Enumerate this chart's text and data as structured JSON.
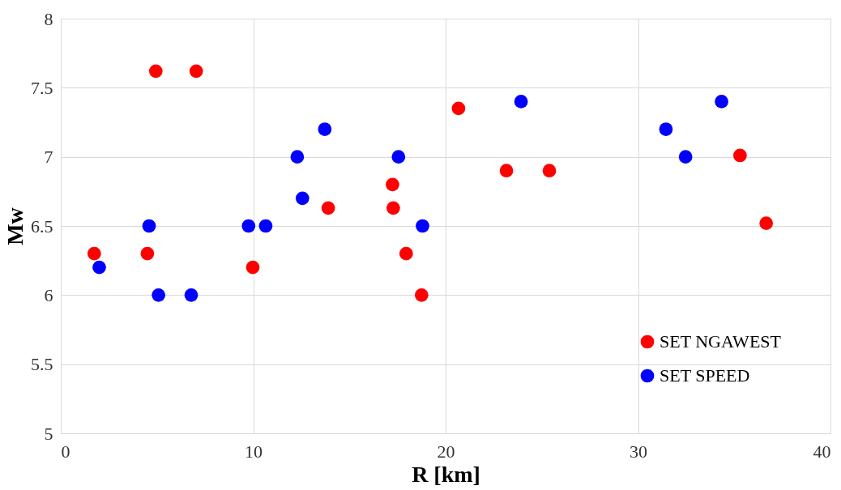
{
  "chart_data": {
    "type": "scatter",
    "xlabel": "R [km]",
    "ylabel": "Mw",
    "xlim": [
      0,
      40
    ],
    "xticks": [
      0,
      10,
      20,
      30,
      40
    ],
    "ylim": [
      5,
      8
    ],
    "yticks": [
      {
        "value": 5,
        "label": "5"
      },
      5.5,
      {
        "value": 6,
        "label": "6"
      },
      6.5,
      {
        "value": 7,
        "label": "7"
      },
      7.5,
      {
        "value": 8,
        "label": "8"
      }
    ],
    "grid": true,
    "legend": "bottom right",
    "marker": "circle",
    "series": [
      {
        "name": "SET NGAWEST",
        "color": "#ff0000",
        "x": [
          1.74,
          4.94,
          7.04,
          4.5,
          9.98,
          13.9,
          17.24,
          17.28,
          17.95,
          18.75,
          20.67,
          23.16,
          25.39,
          35.3,
          36.66
        ],
        "values": [
          6.3,
          7.62,
          7.62,
          6.3,
          6.2,
          6.63,
          6.8,
          6.63,
          6.3,
          6.0,
          7.35,
          6.9,
          6.9,
          7.01,
          6.52
        ]
      },
      {
        "name": "SET SPEED",
        "color": "#0000ff",
        "x": [
          2.0,
          4.59,
          5.08,
          6.78,
          9.76,
          10.65,
          12.29,
          12.56,
          13.72,
          17.55,
          18.8,
          23.92,
          31.45,
          32.47,
          34.34
        ],
        "values": [
          6.2,
          6.5,
          6.0,
          6.0,
          6.5,
          6.5,
          7.0,
          6.7,
          7.2,
          7.0,
          6.5,
          7.4,
          7.2,
          7.0,
          7.4
        ]
      }
    ]
  }
}
